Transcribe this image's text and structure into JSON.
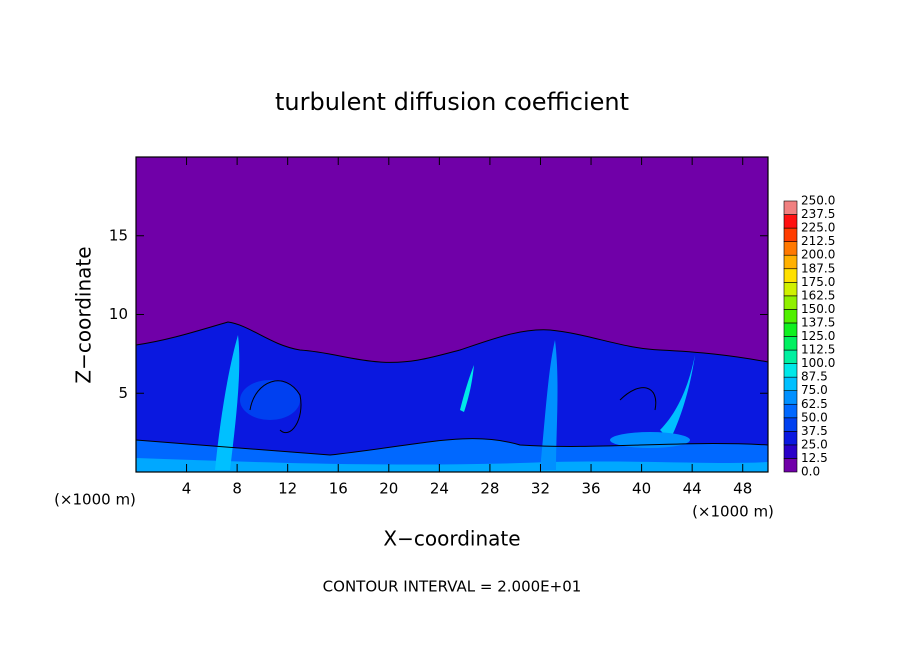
{
  "chart_data": {
    "type": "contour",
    "title": "turbulent diffusion coefficient",
    "x_label": "X−coordinate",
    "y_label": "Z−coordinate",
    "x_unit": "(×1000 m)",
    "y_unit": "(×1000 m)",
    "xlim": [
      0,
      50
    ],
    "ylim": [
      0,
      20
    ],
    "xticks": [
      4,
      8,
      12,
      16,
      20,
      24,
      28,
      32,
      36,
      40,
      44,
      48
    ],
    "yticks": [
      5,
      10,
      15
    ],
    "annotation": "CONTOUR INTERVAL = 2.000E+01",
    "colorbar": {
      "ticks": [
        {
          "value": 0,
          "label": "0.0"
        },
        {
          "value": 12.5,
          "label": "12.5"
        },
        {
          "value": 25,
          "label": "25.0"
        },
        {
          "value": 37.5,
          "label": "37.5"
        },
        {
          "value": 50,
          "label": "50.0"
        },
        {
          "value": 62.5,
          "label": "62.5"
        },
        {
          "value": 75,
          "label": "75.0"
        },
        {
          "value": 87.5,
          "label": "87.5"
        },
        {
          "value": 100,
          "label": "100.0"
        },
        {
          "value": 112.5,
          "label": "112.5"
        },
        {
          "value": 125,
          "label": "125.0"
        },
        {
          "value": 137.5,
          "label": "137.5"
        },
        {
          "value": 150,
          "label": "150.0"
        },
        {
          "value": 162.5,
          "label": "162.5"
        },
        {
          "value": 175,
          "label": "175.0"
        },
        {
          "value": 187.5,
          "label": "187.5"
        },
        {
          "value": 200,
          "label": "200.0"
        },
        {
          "value": 212.5,
          "label": "212.5"
        },
        {
          "value": 225,
          "label": "225.0"
        },
        {
          "value": 237.5,
          "label": "237.5"
        },
        {
          "value": 250,
          "label": "250.0"
        }
      ],
      "colors": [
        "#7000a8",
        "#2a00c8",
        "#0a18e0",
        "#0040f0",
        "#0068ff",
        "#0090ff",
        "#00c0ff",
        "#00e8e8",
        "#00f0a0",
        "#00f060",
        "#10f020",
        "#50f000",
        "#90f000",
        "#d0f000",
        "#ffe000",
        "#ffb000",
        "#ff7800",
        "#ff3c00",
        "#ff1010",
        "#f08080"
      ]
    }
  }
}
